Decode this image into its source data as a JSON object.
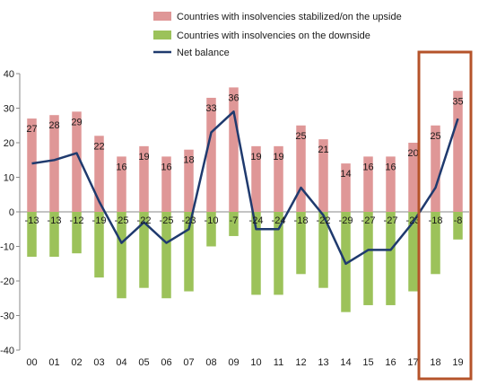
{
  "chart_data": {
    "type": "bar",
    "categories": [
      "00",
      "01",
      "02",
      "03",
      "04",
      "05",
      "06",
      "07",
      "08",
      "09",
      "10",
      "11",
      "12",
      "13",
      "14",
      "15",
      "16",
      "17",
      "18",
      "19"
    ],
    "series": [
      {
        "name": "Countries with insolvencies stabilized/on the upside",
        "kind": "bar",
        "values": [
          27,
          28,
          29,
          22,
          16,
          19,
          16,
          18,
          33,
          36,
          19,
          19,
          25,
          21,
          14,
          16,
          16,
          20,
          25,
          35
        ]
      },
      {
        "name": "Countries with insolvencies on the downside",
        "kind": "bar",
        "values": [
          -13,
          -13,
          -12,
          -19,
          -25,
          -22,
          -25,
          -23,
          -10,
          -7,
          -24,
          -24,
          -18,
          -22,
          -29,
          -27,
          -27,
          -23,
          -18,
          -8
        ]
      },
      {
        "name": "Net balance",
        "kind": "line",
        "values": [
          14,
          15,
          17,
          3,
          -9,
          -3,
          -9,
          -5,
          23,
          29,
          -5,
          -5,
          7,
          -1,
          -15,
          -11,
          -11,
          -3,
          7,
          27
        ]
      }
    ],
    "ylim": [
      -40,
      40
    ],
    "yticks": [
      40,
      30,
      20,
      10,
      0,
      -10,
      -20,
      -30,
      -40
    ],
    "xlabel": "",
    "ylabel": "",
    "legend_position": "top",
    "highlight_categories": [
      "18",
      "19"
    ],
    "colors": {
      "upside": "#df9797",
      "downside": "#9cc25a",
      "net": "#1f3a6e",
      "highlight": "#b5532a",
      "axis": "#8a8a8a"
    }
  }
}
